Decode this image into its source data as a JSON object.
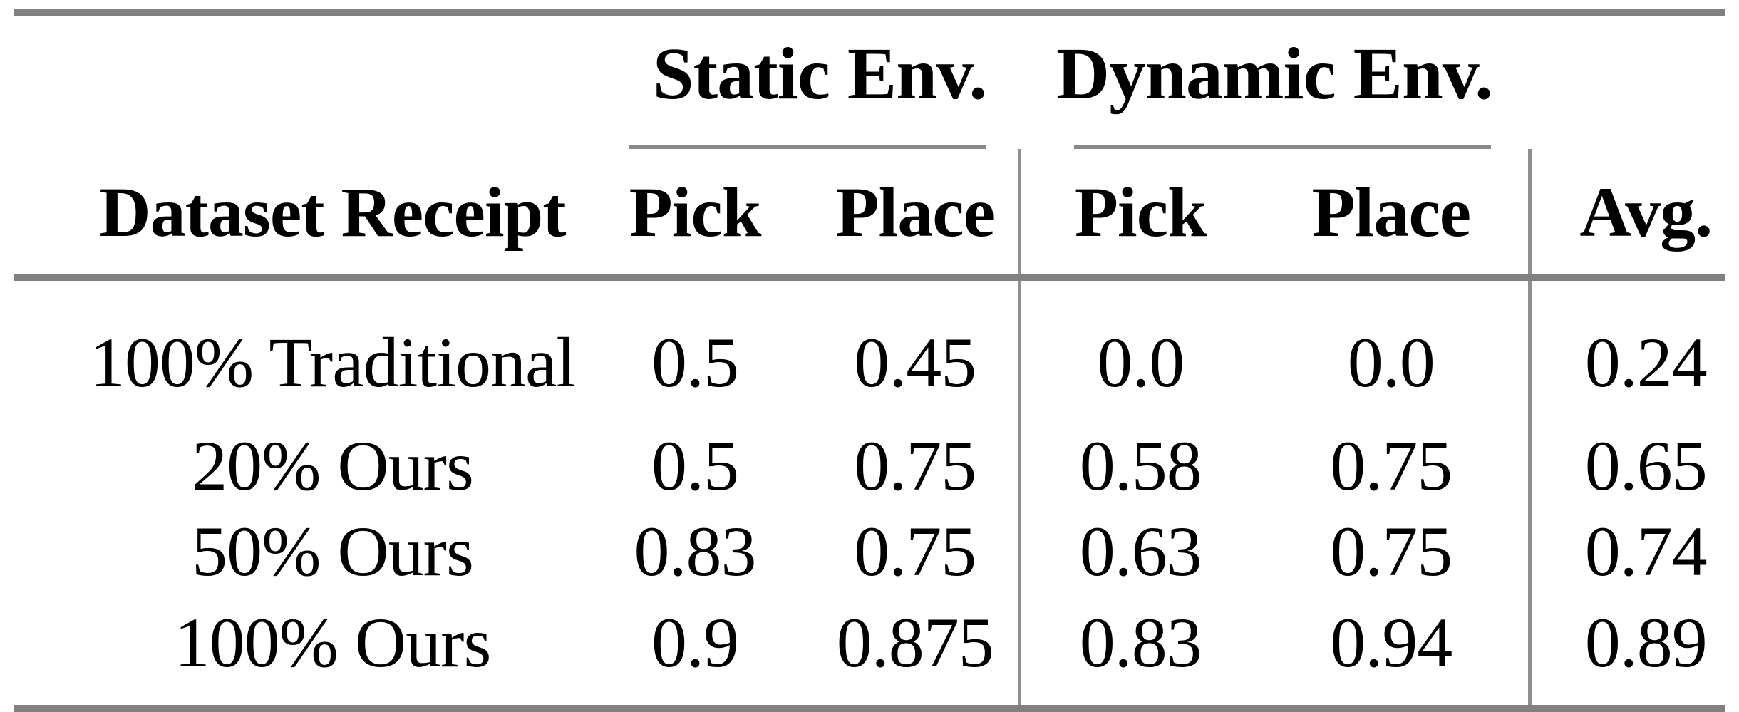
{
  "table": {
    "groups": [
      {
        "label": "Static Env."
      },
      {
        "label": "Dynamic Env."
      }
    ],
    "columns": [
      "Dataset Receipt",
      "Pick",
      "Place",
      "Pick",
      "Place",
      "Avg."
    ],
    "rows": [
      {
        "label": "100% Traditional",
        "static_pick": "0.5",
        "static_place": "0.45",
        "dynamic_pick": "0.0",
        "dynamic_place": "0.0",
        "avg": "0.24"
      },
      {
        "label": "20% Ours",
        "static_pick": "0.5",
        "static_place": "0.75",
        "dynamic_pick": "0.58",
        "dynamic_place": "0.75",
        "avg": "0.65"
      },
      {
        "label": "50% Ours",
        "static_pick": "0.83",
        "static_place": "0.75",
        "dynamic_pick": "0.63",
        "dynamic_place": "0.75",
        "avg": "0.74"
      },
      {
        "label": "100% Ours",
        "static_pick": "0.9",
        "static_place": "0.875",
        "dynamic_pick": "0.83",
        "dynamic_place": "0.94",
        "avg": "0.89"
      }
    ],
    "colors": {
      "heavy_rule": "#808080",
      "light_rule": "#8a8a8a",
      "separator": "#8f8f8f",
      "text": "#000000",
      "background": "#ffffff"
    }
  }
}
